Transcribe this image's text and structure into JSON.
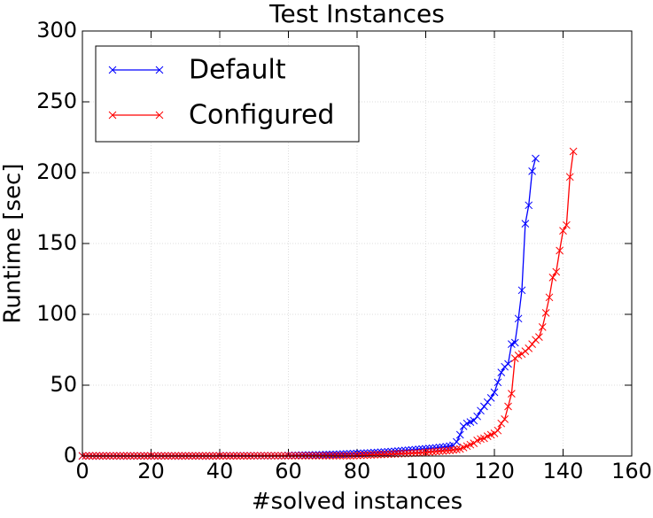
{
  "chart_data": {
    "type": "line",
    "title": "Test Instances",
    "x_label": "#solved instances",
    "y_label": "Runtime [sec]",
    "xlim": [
      0,
      160
    ],
    "xticks": [
      0,
      20,
      40,
      60,
      80,
      100,
      120,
      140,
      160
    ],
    "ylim": [
      0,
      300
    ],
    "yticks": [
      0,
      50,
      100,
      150,
      200,
      250,
      300
    ],
    "grid": true,
    "legend": "upper left",
    "series": [
      {
        "name": "Default",
        "color": "#0000ff",
        "x": [
          0,
          1,
          2,
          3,
          4,
          5,
          6,
          7,
          8,
          9,
          10,
          11,
          12,
          13,
          14,
          15,
          16,
          17,
          18,
          19,
          20,
          21,
          22,
          23,
          24,
          25,
          26,
          27,
          28,
          29,
          30,
          31,
          32,
          33,
          34,
          35,
          36,
          37,
          38,
          39,
          40,
          41,
          42,
          43,
          44,
          45,
          46,
          47,
          48,
          49,
          50,
          51,
          52,
          53,
          54,
          55,
          56,
          57,
          58,
          59,
          60,
          61,
          62,
          63,
          64,
          65,
          66,
          67,
          68,
          69,
          70,
          71,
          72,
          73,
          74,
          75,
          76,
          77,
          78,
          79,
          80,
          81,
          82,
          83,
          84,
          85,
          86,
          87,
          88,
          89,
          90,
          91,
          92,
          93,
          94,
          95,
          96,
          97,
          98,
          99,
          100,
          101,
          102,
          103,
          104,
          105,
          106,
          107,
          108,
          109,
          110,
          111,
          112,
          113,
          114,
          115,
          116,
          117,
          118,
          119,
          120,
          121,
          122,
          123,
          124,
          125,
          126,
          127,
          128,
          129,
          130,
          131,
          132
        ],
        "values": [
          0.1,
          0.1,
          0.1,
          0.1,
          0.1,
          0.1,
          0.1,
          0.1,
          0.1,
          0.1,
          0.1,
          0.1,
          0.1,
          0.1,
          0.1,
          0.1,
          0.1,
          0.1,
          0.1,
          0.1,
          0.1,
          0.1,
          0.1,
          0.1,
          0.1,
          0.1,
          0.1,
          0.1,
          0.1,
          0.1,
          0.1,
          0.1,
          0.1,
          0.1,
          0.1,
          0.1,
          0.1,
          0.1,
          0.1,
          0.1,
          0.2,
          0.2,
          0.2,
          0.2,
          0.2,
          0.2,
          0.2,
          0.2,
          0.2,
          0.2,
          0.2,
          0.2,
          0.2,
          0.2,
          0.2,
          0.2,
          0.2,
          0.2,
          0.2,
          0.2,
          0.4,
          0.4,
          0.5,
          0.5,
          0.6,
          0.6,
          0.7,
          0.7,
          0.8,
          0.8,
          0.9,
          1,
          1,
          1.1,
          1.2,
          1.3,
          1.4,
          1.5,
          1.6,
          1.7,
          1.8,
          1.9,
          2,
          2.1,
          2.2,
          2.4,
          2.5,
          2.7,
          2.8,
          3,
          3.1,
          3.3,
          3.5,
          3.7,
          3.9,
          4.1,
          4.3,
          4.5,
          4.7,
          4.9,
          5.1,
          5.3,
          5.5,
          5.7,
          6,
          6.3,
          6.6,
          7,
          7.5,
          10,
          15,
          21,
          23,
          24,
          25,
          28,
          32,
          35,
          38,
          41,
          45,
          52,
          59,
          63,
          65,
          79,
          80,
          97,
          117,
          164,
          177,
          201,
          210
        ]
      },
      {
        "name": "Configured",
        "color": "#ff0000",
        "x": [
          0,
          1,
          2,
          3,
          4,
          5,
          6,
          7,
          8,
          9,
          10,
          11,
          12,
          13,
          14,
          15,
          16,
          17,
          18,
          19,
          20,
          21,
          22,
          23,
          24,
          25,
          26,
          27,
          28,
          29,
          30,
          31,
          32,
          33,
          34,
          35,
          36,
          37,
          38,
          39,
          40,
          41,
          42,
          43,
          44,
          45,
          46,
          47,
          48,
          49,
          50,
          51,
          52,
          53,
          54,
          55,
          56,
          57,
          58,
          59,
          60,
          61,
          62,
          63,
          64,
          65,
          66,
          67,
          68,
          69,
          70,
          71,
          72,
          73,
          74,
          75,
          76,
          77,
          78,
          79,
          80,
          81,
          82,
          83,
          84,
          85,
          86,
          87,
          88,
          89,
          90,
          91,
          92,
          93,
          94,
          95,
          96,
          97,
          98,
          99,
          100,
          101,
          102,
          103,
          104,
          105,
          106,
          107,
          108,
          109,
          110,
          111,
          112,
          113,
          114,
          115,
          116,
          117,
          118,
          119,
          120,
          121,
          122,
          123,
          124,
          125,
          126,
          127,
          128,
          129,
          130,
          131,
          132,
          133,
          134,
          135,
          136,
          137,
          138,
          139,
          140,
          141,
          142,
          143
        ],
        "values": [
          0.1,
          0.1,
          0.1,
          0.1,
          0.1,
          0.1,
          0.1,
          0.1,
          0.1,
          0.1,
          0.1,
          0.1,
          0.1,
          0.1,
          0.1,
          0.1,
          0.1,
          0.1,
          0.1,
          0.1,
          0.1,
          0.1,
          0.1,
          0.1,
          0.1,
          0.1,
          0.1,
          0.1,
          0.1,
          0.1,
          0.1,
          0.1,
          0.1,
          0.1,
          0.1,
          0.1,
          0.1,
          0.1,
          0.1,
          0.1,
          0.1,
          0.1,
          0.1,
          0.1,
          0.1,
          0.1,
          0.1,
          0.1,
          0.1,
          0.1,
          0.2,
          0.2,
          0.2,
          0.2,
          0.2,
          0.2,
          0.2,
          0.2,
          0.2,
          0.2,
          0.2,
          0.2,
          0.2,
          0.2,
          0.2,
          0.2,
          0.2,
          0.2,
          0.2,
          0.2,
          0.2,
          0.2,
          0.2,
          0.2,
          0.2,
          0.2,
          0.2,
          0.2,
          0.2,
          0.2,
          0.4,
          0.5,
          0.6,
          0.7,
          0.8,
          0.9,
          1,
          1.1,
          1.2,
          1.3,
          1.4,
          1.5,
          1.6,
          1.7,
          1.8,
          1.9,
          2,
          2.1,
          2.2,
          2.4,
          2.6,
          2.8,
          3,
          3.2,
          3.4,
          3.6,
          3.8,
          4,
          4.3,
          4.6,
          5,
          6,
          7,
          8,
          9,
          11,
          12,
          12.5,
          14,
          15,
          16,
          18,
          23,
          26,
          35,
          44,
          69,
          71,
          72,
          74,
          76,
          79,
          82,
          84,
          91,
          101,
          112,
          126,
          130,
          145,
          159,
          163,
          197,
          215
        ]
      }
    ]
  }
}
